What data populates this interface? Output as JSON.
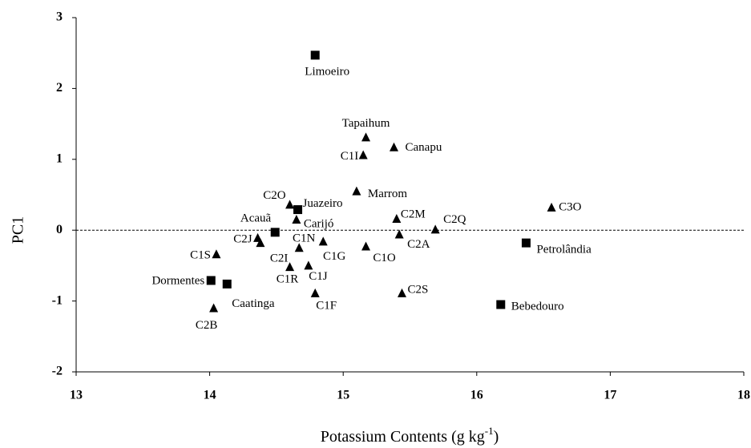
{
  "chart_data": {
    "type": "scatter",
    "xlabel": "Potassium Contents (g kg",
    "xlabel_sup": "-1",
    "xlabel_end": ")",
    "ylabel": "PC1",
    "xlim": [
      13,
      18
    ],
    "xticks": [
      13,
      14,
      15,
      16,
      17,
      18
    ],
    "ylim": [
      -2,
      3
    ],
    "yticks": [
      -2,
      -1,
      0,
      1,
      2,
      3
    ],
    "hline": 0,
    "color": "#000000",
    "points": [
      {
        "label": "Limoeiro",
        "x": 14.79,
        "y": 2.47,
        "marker": "square"
      },
      {
        "label": "Juazeiro",
        "x": 14.66,
        "y": 0.29,
        "marker": "square"
      },
      {
        "label": "Acauã",
        "x": 14.49,
        "y": -0.03,
        "marker": "square"
      },
      {
        "label": "Dormentes",
        "x": 14.01,
        "y": -0.71,
        "marker": "square"
      },
      {
        "label": "Caatinga",
        "x": 14.13,
        "y": -0.76,
        "marker": "square"
      },
      {
        "label": "Petrolândia",
        "x": 16.37,
        "y": -0.18,
        "marker": "square"
      },
      {
        "label": "Bebedouro",
        "x": 16.18,
        "y": -1.05,
        "marker": "square"
      },
      {
        "label": "Tapaihum",
        "x": 15.17,
        "y": 1.31,
        "marker": "triangle"
      },
      {
        "label": "C1I",
        "x": 15.15,
        "y": 1.06,
        "marker": "triangle"
      },
      {
        "label": "Canapu",
        "x": 15.38,
        "y": 1.17,
        "marker": "triangle"
      },
      {
        "label": "Marrom",
        "x": 15.1,
        "y": 0.55,
        "marker": "triangle"
      },
      {
        "label": "C2O",
        "x": 14.6,
        "y": 0.36,
        "marker": "triangle"
      },
      {
        "label": "Carijó",
        "x": 14.65,
        "y": 0.15,
        "marker": "triangle"
      },
      {
        "label": "C2M",
        "x": 15.4,
        "y": 0.16,
        "marker": "triangle"
      },
      {
        "label": "C2Q",
        "x": 15.69,
        "y": 0.01,
        "marker": "triangle"
      },
      {
        "label": "C3O",
        "x": 16.56,
        "y": 0.32,
        "marker": "triangle"
      },
      {
        "label": "C2J",
        "x": 14.36,
        "y": -0.11,
        "marker": "triangle"
      },
      {
        "label": "C1S",
        "x": 14.05,
        "y": -0.34,
        "marker": "triangle"
      },
      {
        "label": "C2I",
        "x": 14.38,
        "y": -0.18,
        "marker": "triangle"
      },
      {
        "label": "C1N",
        "x": 14.67,
        "y": -0.25,
        "marker": "triangle"
      },
      {
        "label": "C1G",
        "x": 14.85,
        "y": -0.16,
        "marker": "triangle"
      },
      {
        "label": "C1O",
        "x": 15.17,
        "y": -0.23,
        "marker": "triangle"
      },
      {
        "label": "C2A",
        "x": 15.42,
        "y": -0.06,
        "marker": "triangle"
      },
      {
        "label": "C1R",
        "x": 14.6,
        "y": -0.52,
        "marker": "triangle"
      },
      {
        "label": "C1J",
        "x": 14.74,
        "y": -0.5,
        "marker": "triangle"
      },
      {
        "label": "C1F",
        "x": 14.79,
        "y": -0.89,
        "marker": "triangle"
      },
      {
        "label": "C2S",
        "x": 15.44,
        "y": -0.89,
        "marker": "triangle"
      },
      {
        "label": "C2B",
        "x": 14.03,
        "y": -1.1,
        "marker": "triangle"
      }
    ]
  }
}
